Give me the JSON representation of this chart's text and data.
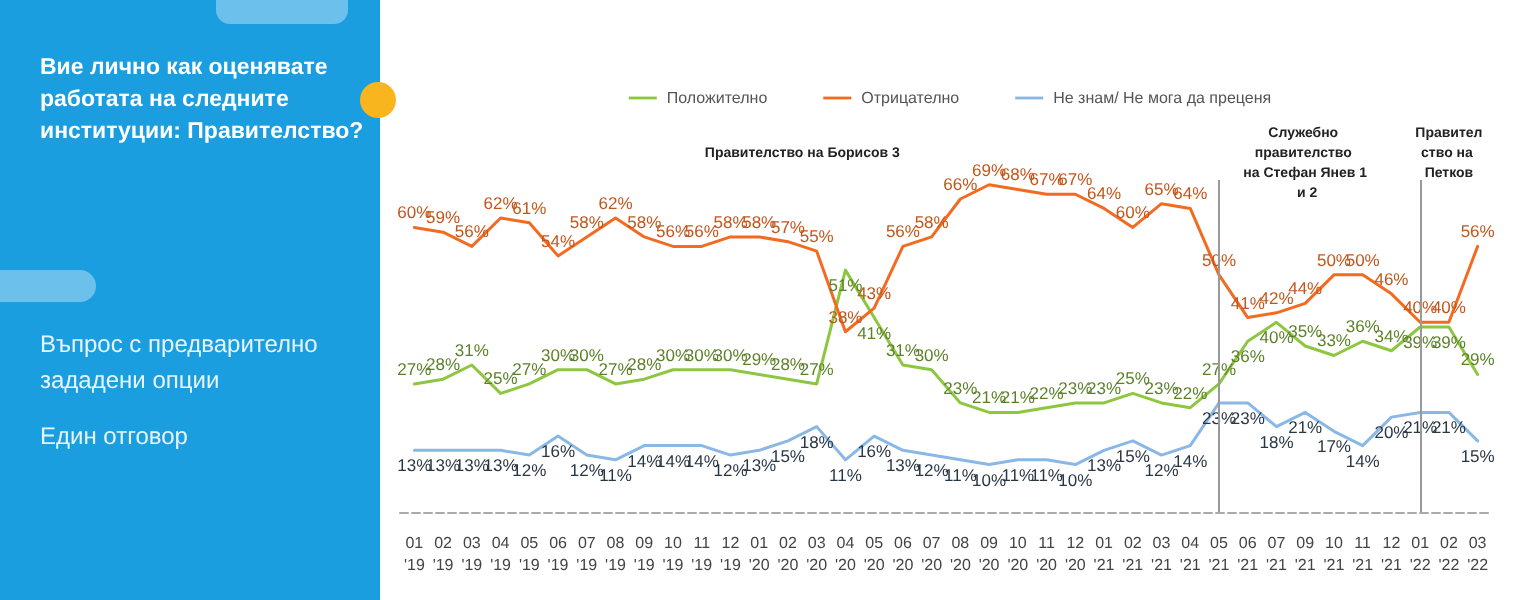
{
  "chart_data": {
    "type": "line",
    "title": "Вие лично как оценявате работата на следните институции: Правителство?",
    "subtitle": "Въпрос с предварително зададени опции",
    "annotations": [
      "Един отговор",
      "Правителство на Борисов 3"
    ],
    "categories": [
      "01 '19",
      "02 '19",
      "03 '19",
      "04 '19",
      "05 '19",
      "06 '19",
      "07 '19",
      "08 '19",
      "09 '19",
      "10 '19",
      "11 '19",
      "12 '19",
      "01 '20",
      "02 '20",
      "03 '20",
      "04 '20",
      "05 '20",
      "06 '20",
      "07 '20",
      "08 '20",
      "09 '20",
      "10 '20",
      "11 '20",
      "12 '20",
      "01 '21",
      "02 '21",
      "03 '21",
      "04 '21",
      "05 '21",
      "06 '21",
      "07 '21",
      "09 '21",
      "10 '21",
      "11 '21",
      "12 '21",
      "01 '22",
      "02 '22",
      "03 '22"
    ],
    "series": [
      {
        "name": "Положително",
        "color": "#8dc63f",
        "values": [
          27,
          28,
          31,
          25,
          27,
          30,
          30,
          27,
          28,
          30,
          30,
          30,
          29,
          28,
          27,
          51,
          41,
          31,
          30,
          23,
          21,
          21,
          22,
          23,
          23,
          25,
          23,
          22,
          27,
          36,
          40,
          35,
          33,
          36,
          34,
          39,
          39,
          29
        ],
        "value_labels": [
          "27%",
          "28%",
          "31%",
          "25%",
          "27%",
          "30%",
          "30%",
          "27%",
          "28%",
          "30%",
          "30%",
          "30%",
          "29%",
          "28%",
          "27%",
          "51%",
          "41%",
          "31%",
          "30%",
          "23%",
          "21%",
          "21%",
          "22%",
          "23%",
          "23%",
          "25%",
          "23%",
          "22%",
          "27%",
          "36%",
          "40%",
          "35%",
          "33%",
          "36%",
          "34%",
          "39%",
          "39%",
          "29%"
        ]
      },
      {
        "name": "Отрицателно",
        "color": "#f26b21",
        "values": [
          60,
          59,
          56,
          62,
          61,
          54,
          58,
          62,
          58,
          56,
          56,
          58,
          58,
          57,
          55,
          38,
          43,
          56,
          58,
          66,
          69,
          68,
          67,
          67,
          64,
          60,
          65,
          64,
          50,
          41,
          42,
          44,
          50,
          50,
          46,
          40,
          40,
          56
        ],
        "value_labels": [
          "60%",
          "59%",
          "56%",
          "62%",
          "61%",
          "54%",
          "58%",
          "62%",
          "58%",
          "56%",
          "56%",
          "58%",
          "58%",
          "57%",
          "55%",
          "38%",
          "43%",
          "56%",
          "58%",
          "66%",
          "69%",
          "68%",
          "67%",
          "67%",
          "64%",
          "60%",
          "65%",
          "64%",
          "50%",
          "41%",
          "42%",
          "44%",
          "50%",
          "50%",
          "46%",
          "40%",
          "40%",
          "56%"
        ]
      },
      {
        "name": "Не знам/ Не мога да преценя",
        "color": "#8ab8e6",
        "values": [
          13,
          13,
          13,
          13,
          12,
          16,
          12,
          11,
          14,
          14,
          14,
          12,
          13,
          15,
          18,
          11,
          16,
          13,
          12,
          11,
          10,
          11,
          11,
          10,
          13,
          15,
          12,
          14,
          23,
          23,
          18,
          21,
          17,
          14,
          20,
          21,
          21,
          15
        ],
        "value_labels": [
          "13%",
          "13%",
          "13%",
          "13%",
          "12%",
          "16%",
          "12%",
          "11%",
          "14%",
          "14%",
          "14%",
          "12%",
          "13%",
          "15%",
          "18%",
          "11%",
          "16%",
          "13%",
          "12%",
          "11%",
          "10%",
          "11%",
          "11%",
          "10%",
          "13%",
          "15%",
          "12%",
          "14%",
          "23%",
          "23%",
          "18%",
          "21%",
          "17%",
          "14%",
          "20%",
          "21%",
          "21%",
          "15%"
        ]
      }
    ],
    "ref_lines": [
      {
        "axis": "x",
        "value": "05 '21",
        "label": "Служебно правителство на Стефан Янев 1 и 2",
        "color": "#999999"
      },
      {
        "axis": "x",
        "value": "01 '22",
        "label": "Правителство на Петков",
        "color": "#999999"
      }
    ],
    "legend": "top",
    "marker": "none",
    "line_style": "solid",
    "grid": false
  }
}
